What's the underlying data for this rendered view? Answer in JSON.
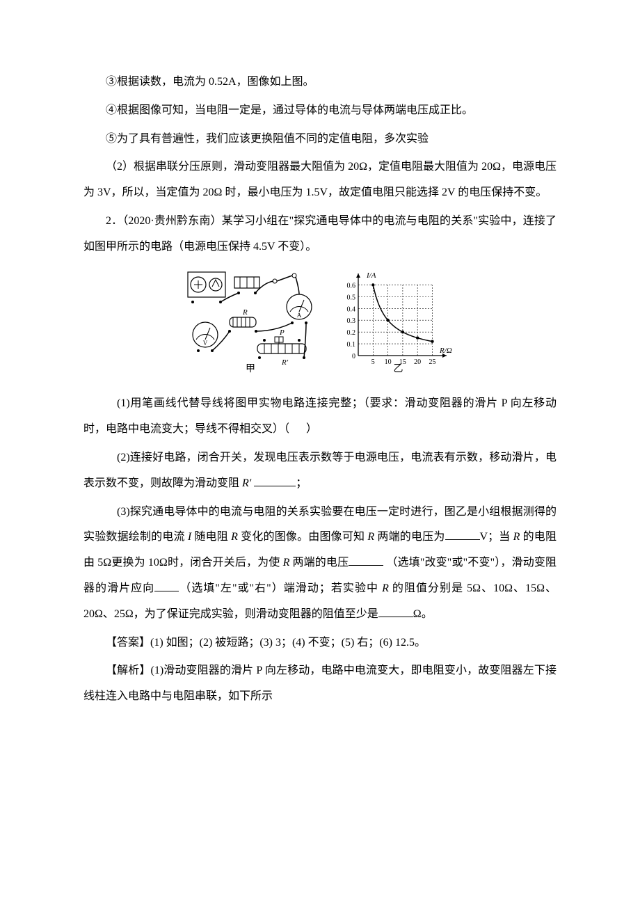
{
  "line1": "③根据读数，电流为 0.52A，图像如上图。",
  "line2": "④根据图像可知，当电阻一定是，通过导体的电流与导体两端电压成正比。",
  "line3": "⑤为了具有普遍性，我们应该更换阻值不同的定值电阻，多次实验",
  "line4": "（2）根据串联分压原则，滑动变阻器最大阻值为 20Ω，定值电阻最大阻值为 20Ω，电源电压为 3V，所以，当定值为 20Ω 时，最小电压为 1.5V，故定值电阻只能选择 2V 的电压保持不变。",
  "line5_pre": "2．（2020·贵州黔东南）某学习小组在\"探究通电导体中的电流与电阻的关系\"实验中，连接了如图甲所示的电路（电源电压保持 4.5V 不变）。",
  "q1_pre": "(1)用笔画线代替导线将图甲实物电路连接完整；（要求：滑动变阻器的滑片 P 向左移动时，电路中电流变大；导线不得相交叉）（",
  "q1_post": "）",
  "q2_pre": "(2)连接好电路，闭合开关，发现电压表示数等于电源电压，电流表有示数，移动滑片，电表示数不变，则故障为滑动变阻",
  "q2_post": "；",
  "q3_pre": "(3)探究通电导体中的电流与电阻的关系实验要在电压一定时进行，图乙是小组根据测得的实验数据绘制的电流",
  "q3_mid1": "随电阻",
  "q3_mid2": "变化的图像。由图像可知",
  "q3_mid3": "两端的电压为",
  "q3_post1": "V；当",
  "q3_post2": "的电阻由 5Ω更换为 10Ω时，闭合开关后，为使",
  "q3_post3": "两端的电压",
  "q3_post4": "（选填\"改变\"或\"不变\"），滑动变阻器的滑片应向",
  "q3_post5": "（选填\"左\"或\"右\"）端滑动；若实验中",
  "q3_post6": "的阻值分别是 5Ω、10Ω、15Ω、20Ω、25Ω，为了保证完成实验，则滑动变阻器的阻值至少是",
  "q3_end": "Ω。",
  "ans": "【答案】(1) 如图；(2) 被短路；(3) 3；(4) 不变；(5) 右；(6) 12.5。",
  "exp1": "【解析】(1)滑动变阻器的滑片 P 向左移动，电路中电流变大，即电阻变小，故变阻器左下接线柱连入电路中与电阻串联，如下所示",
  "italic_R": "R",
  "italic_Rp": "R'",
  "italic_I": "I",
  "circuit_label": "甲",
  "chart_label": "乙",
  "chart": {
    "ylabel": "I/A",
    "xlabel": "R/Ω",
    "xticks": [
      "5",
      "10",
      "15",
      "20",
      "25"
    ],
    "yticks": [
      "0",
      "0.1",
      "0.2",
      "0.3",
      "0.4",
      "0.5",
      "0.6"
    ],
    "points": [
      {
        "x": 5,
        "y": 0.6
      },
      {
        "x": 10,
        "y": 0.3
      },
      {
        "x": 15,
        "y": 0.2
      },
      {
        "x": 20,
        "y": 0.15
      },
      {
        "x": 25,
        "y": 0.12
      }
    ],
    "axis_color": "#000000",
    "grid_color": "#000000",
    "line_color": "#000000",
    "bg": "#ffffff"
  }
}
